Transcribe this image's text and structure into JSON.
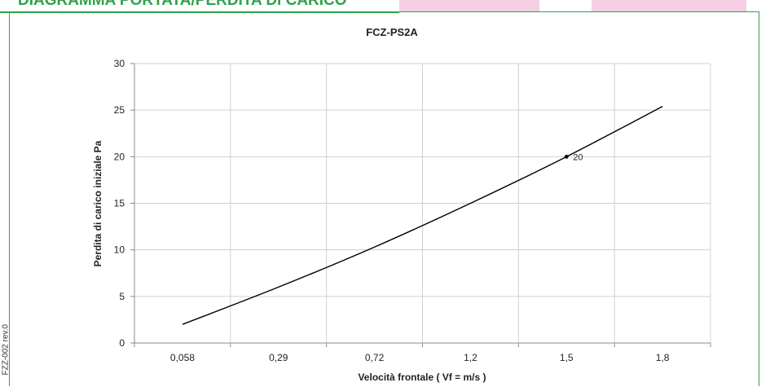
{
  "header": {
    "title": "DIAGRAMMA PORTATA/PERDITA DI CARICO",
    "side_code": "FZZ-002 rev.0"
  },
  "colors": {
    "brand_green": "#2ea24a",
    "tab_pink": "#f4cfe3",
    "grid": "#d0d0d0",
    "line": "#000000"
  },
  "chart_data": {
    "type": "line",
    "title": "FCZ-PS2A",
    "xlabel": "Velocità frontale  ( Vf =  m/s )",
    "ylabel": "Perdita di carico iniziale Pa",
    "categories": [
      "0,058",
      "0,29",
      "0,72",
      "1,2",
      "1,5",
      "1,8"
    ],
    "ylim": [
      0,
      30
    ],
    "yticks": [
      0,
      5,
      10,
      15,
      20,
      25,
      30
    ],
    "grid": true,
    "series": [
      {
        "values": [
          2,
          6,
          10.3,
          15,
          20,
          25.4
        ]
      }
    ],
    "annotations": [
      {
        "category": "1,5",
        "y": 20,
        "label": "20"
      }
    ]
  }
}
